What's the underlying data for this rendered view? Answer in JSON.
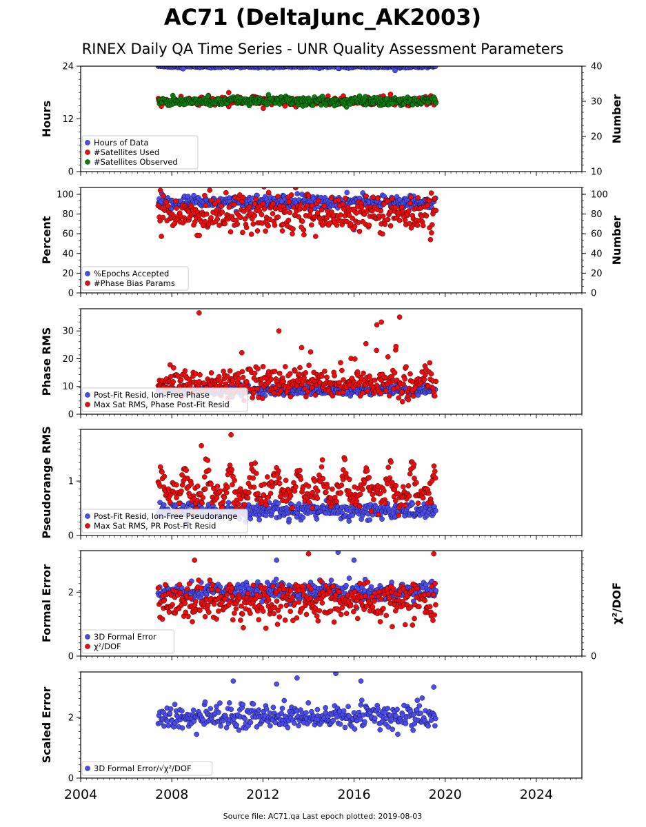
{
  "figure": {
    "title": "AC71 (DeltaJunc_AK2003)",
    "subtitle": "RINEX Daily QA Time Series - UNR Quality Assessment Parameters",
    "footer": "Source file: AC71.qa Last epoch plotted: 2019-08-03",
    "x_range": [
      2004,
      2026
    ],
    "x_ticks": [
      2004,
      2008,
      2012,
      2016,
      2020,
      2024
    ],
    "data_span": [
      2007.4,
      2019.6
    ]
  },
  "colors": {
    "blue": "#4b4bf0",
    "red": "#ee0a0a",
    "green": "#0a800a",
    "edge": "#000000"
  },
  "chart_data": [
    {
      "type": "scatter",
      "ylabel": "Hours",
      "ylabel_right": "Number",
      "ylim": [
        0,
        24
      ],
      "yticks": [
        0,
        12,
        24
      ],
      "ylim_right": [
        10,
        40
      ],
      "yticks_right": [
        10,
        20,
        30,
        40
      ],
      "legend_position": "lower-left",
      "series": [
        {
          "name": "Hours of Data",
          "color": "blue",
          "axis": "left",
          "value": 23.9,
          "spread": 0.15,
          "outliers": [
            [
              2008.5,
              23.4
            ],
            [
              2017.8,
              23.0
            ],
            [
              2015.3,
              23.5
            ]
          ]
        },
        {
          "name": "#Satellites Used",
          "color": "red",
          "axis": "right",
          "value": 30.0,
          "spread": 0.6,
          "outliers": [
            [
              2010.5,
              32.5
            ],
            [
              2017.6,
              32.0
            ]
          ]
        },
        {
          "name": "#Satellites Observed",
          "color": "green",
          "axis": "right",
          "value": 30.0,
          "spread": 0.6,
          "outliers": []
        }
      ]
    },
    {
      "type": "scatter",
      "ylabel": "Percent",
      "ylabel_right": "Number",
      "ylim": [
        0,
        107
      ],
      "yticks": [
        0,
        20,
        40,
        60,
        80,
        100
      ],
      "ylim_right": [
        0,
        107
      ],
      "yticks_right": [
        0,
        20,
        40,
        60,
        80,
        100
      ],
      "legend_position": "lower-left",
      "series": [
        {
          "name": "%Epochs Accepted",
          "color": "blue",
          "axis": "left",
          "value": 92,
          "spread": 3,
          "outliers": [
            [
              2016.0,
              64
            ],
            [
              2013.0,
              70
            ]
          ]
        },
        {
          "name": "#Phase Bias Params",
          "color": "red",
          "axis": "right",
          "value": 80,
          "spread": 10,
          "outliers": [
            [
              2007.5,
              104
            ],
            [
              2019.4,
              61
            ]
          ]
        }
      ]
    },
    {
      "type": "scatter",
      "ylabel": "Phase RMS",
      "ylim": [
        0,
        38
      ],
      "yticks": [
        0,
        10,
        20,
        30
      ],
      "legend_position": "lower-left",
      "series": [
        {
          "name": "Post-Fit Resid, Ion-Free Phase",
          "color": "blue",
          "axis": "left",
          "value": 8.5,
          "spread": 0.8,
          "outliers": []
        },
        {
          "name": "Max Sat RMS, Phase Post-Fit Resid",
          "color": "red",
          "axis": "left",
          "value": 11,
          "spread": 2.5,
          "outliers": [
            [
              2009.2,
              36.5
            ],
            [
              2012.7,
              30
            ],
            [
              2017.2,
              33.2
            ],
            [
              2018.0,
              35
            ],
            [
              2017.0,
              32.2
            ],
            [
              2013.7,
              24
            ]
          ]
        }
      ]
    },
    {
      "type": "scatter",
      "ylabel": "Pseudorange RMS",
      "ylim": [
        0,
        1.95
      ],
      "yticks": [
        0,
        1
      ],
      "legend_position": "lower-left",
      "series": [
        {
          "name": "Post-Fit Resid, Ion-Free Pseudorange",
          "color": "blue",
          "axis": "left",
          "value": 0.45,
          "spread": 0.08,
          "outliers": []
        },
        {
          "name": "Max Sat RMS, PR Post-Fit Resid",
          "color": "red",
          "axis": "left",
          "value": 0.8,
          "spread": 0.5,
          "outliers": [
            [
              2010.6,
              1.85
            ],
            [
              2009.3,
              1.65
            ]
          ]
        }
      ]
    },
    {
      "type": "scatter",
      "ylabel": "Formal Error",
      "ylabel_right": "χ²/DOF",
      "ylim": [
        0,
        3.3
      ],
      "yticks": [
        0,
        2
      ],
      "ylim_right": [
        0,
        3.3
      ],
      "yticks_right": [
        0
      ],
      "legend_position": "lower-left",
      "series": [
        {
          "name": "3D Formal Error",
          "color": "blue",
          "axis": "left",
          "value": 2.0,
          "spread": 0.15,
          "outliers": [
            [
              2015.3,
              3.25
            ],
            [
              2012.6,
              3.0
            ],
            [
              2016.0,
              3.0
            ]
          ]
        },
        {
          "name": "χ²/DOF",
          "color": "red",
          "axis": "right",
          "value": 1.7,
          "spread": 0.3,
          "outliers": [
            [
              2014.0,
              3.2
            ],
            [
              2019.5,
              3.2
            ],
            [
              2009.0,
              3.0
            ]
          ]
        }
      ]
    },
    {
      "type": "scatter",
      "ylabel": "Scaled Error",
      "ylim": [
        0,
        3.5
      ],
      "yticks": [
        0,
        2
      ],
      "legend_position": "lower-left",
      "series": [
        {
          "name": "3D Formal Error/√χ²/DOF",
          "color": "blue",
          "axis": "left",
          "value": 2.0,
          "spread": 0.2,
          "outliers": [
            [
              2015.2,
              3.45
            ],
            [
              2013.5,
              3.3
            ],
            [
              2016.3,
              3.2
            ],
            [
              2010.7,
              3.2
            ],
            [
              2019.5,
              3.0
            ],
            [
              2012.6,
              3.1
            ]
          ]
        }
      ]
    }
  ]
}
